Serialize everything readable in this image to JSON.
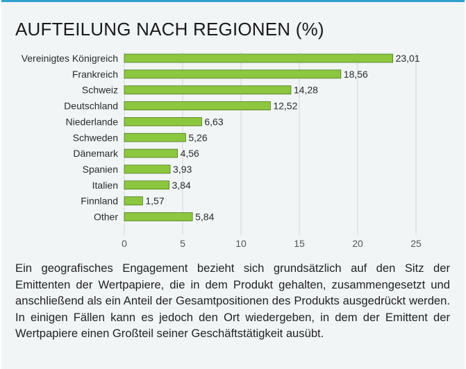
{
  "title": "AUFTEILUNG NACH REGIONEN (%)",
  "description": "Ein geografisches Engagement bezieht sich grundsätzlich auf den Sitz der Emittenten der Wertpapiere, die in dem Produkt gehalten, zusammengesetzt und anschließend als ein Anteil der Gesamtpositionen des Produkts ausgedrückt werden. In einigen Fällen kann es jedoch den Ort wiedergeben, in dem der Emittent der Wertpapiere einen Großteil seiner Geschäftstätigkeit ausübt.",
  "colors": {
    "bar": "#8dc63f",
    "bar_stroke": "#4d7a1c",
    "grid": "#d4d7d8",
    "accent": "#2fa1cf"
  },
  "chart_data": {
    "type": "bar",
    "orientation": "horizontal",
    "title": "AUFTEILUNG NACH REGIONEN (%)",
    "xlabel": "",
    "ylabel": "",
    "categories": [
      "Vereinigtes Königreich",
      "Frankreich",
      "Schweiz",
      "Deutschland",
      "Niederlande",
      "Schweden",
      "Dänemark",
      "Spanien",
      "Italien",
      "Finnland",
      "Other"
    ],
    "values": [
      23.01,
      18.56,
      14.28,
      12.52,
      6.63,
      5.26,
      4.56,
      3.93,
      3.84,
      1.57,
      5.84
    ],
    "value_labels": [
      "23,01",
      "18,56",
      "14,28",
      "12,52",
      "6,63",
      "5,26",
      "4,56",
      "3,93",
      "3,84",
      "1,57",
      "5,84"
    ],
    "xlim": [
      0,
      25
    ],
    "xticks": [
      0,
      5,
      10,
      15,
      20,
      25
    ],
    "xtick_labels": [
      "0",
      "5",
      "10",
      "15",
      "20",
      "25"
    ],
    "grid": true,
    "legend": "none"
  }
}
